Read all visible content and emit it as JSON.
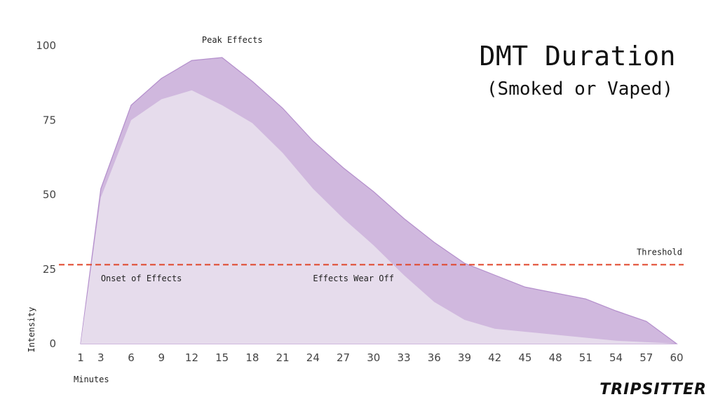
{
  "chart_data": {
    "type": "area",
    "title": "DMT Duration",
    "subtitle": "(Smoked or Vaped)",
    "xlabel": "Minutes",
    "ylabel": "Intensity",
    "x": [
      1,
      3,
      6,
      9,
      12,
      15,
      18,
      21,
      24,
      27,
      30,
      33,
      36,
      39,
      42,
      45,
      48,
      51,
      54,
      57,
      60
    ],
    "ylim": [
      0,
      100
    ],
    "yticks": [
      0,
      25,
      50,
      75,
      100
    ],
    "series": [
      {
        "values": [
          0,
          52,
          80,
          89,
          95,
          96,
          88,
          79,
          68,
          59,
          51,
          42,
          34,
          27,
          23,
          19,
          17,
          15,
          11,
          7.5,
          0
        ],
        "color": "#d0b8de"
      },
      {
        "values": [
          0,
          49,
          75,
          82,
          85,
          80,
          74,
          64,
          52,
          42,
          33,
          23,
          14,
          8,
          5,
          4,
          3,
          2,
          1,
          0.5,
          0
        ],
        "color": "#e6dcec"
      }
    ],
    "threshold": {
      "label": "Threshold",
      "value": 26.5,
      "color": "#e0452a"
    },
    "annotations": [
      {
        "text": "Peak Effects",
        "x": 13,
        "y": 101
      },
      {
        "text": "Onset of Effects",
        "x": 3,
        "y": 21
      },
      {
        "text": "Effects Wear Off",
        "x": 24,
        "y": 21
      }
    ],
    "grid": false,
    "outline_color": "#b48fcc"
  },
  "brand": "TRIPSITTER"
}
